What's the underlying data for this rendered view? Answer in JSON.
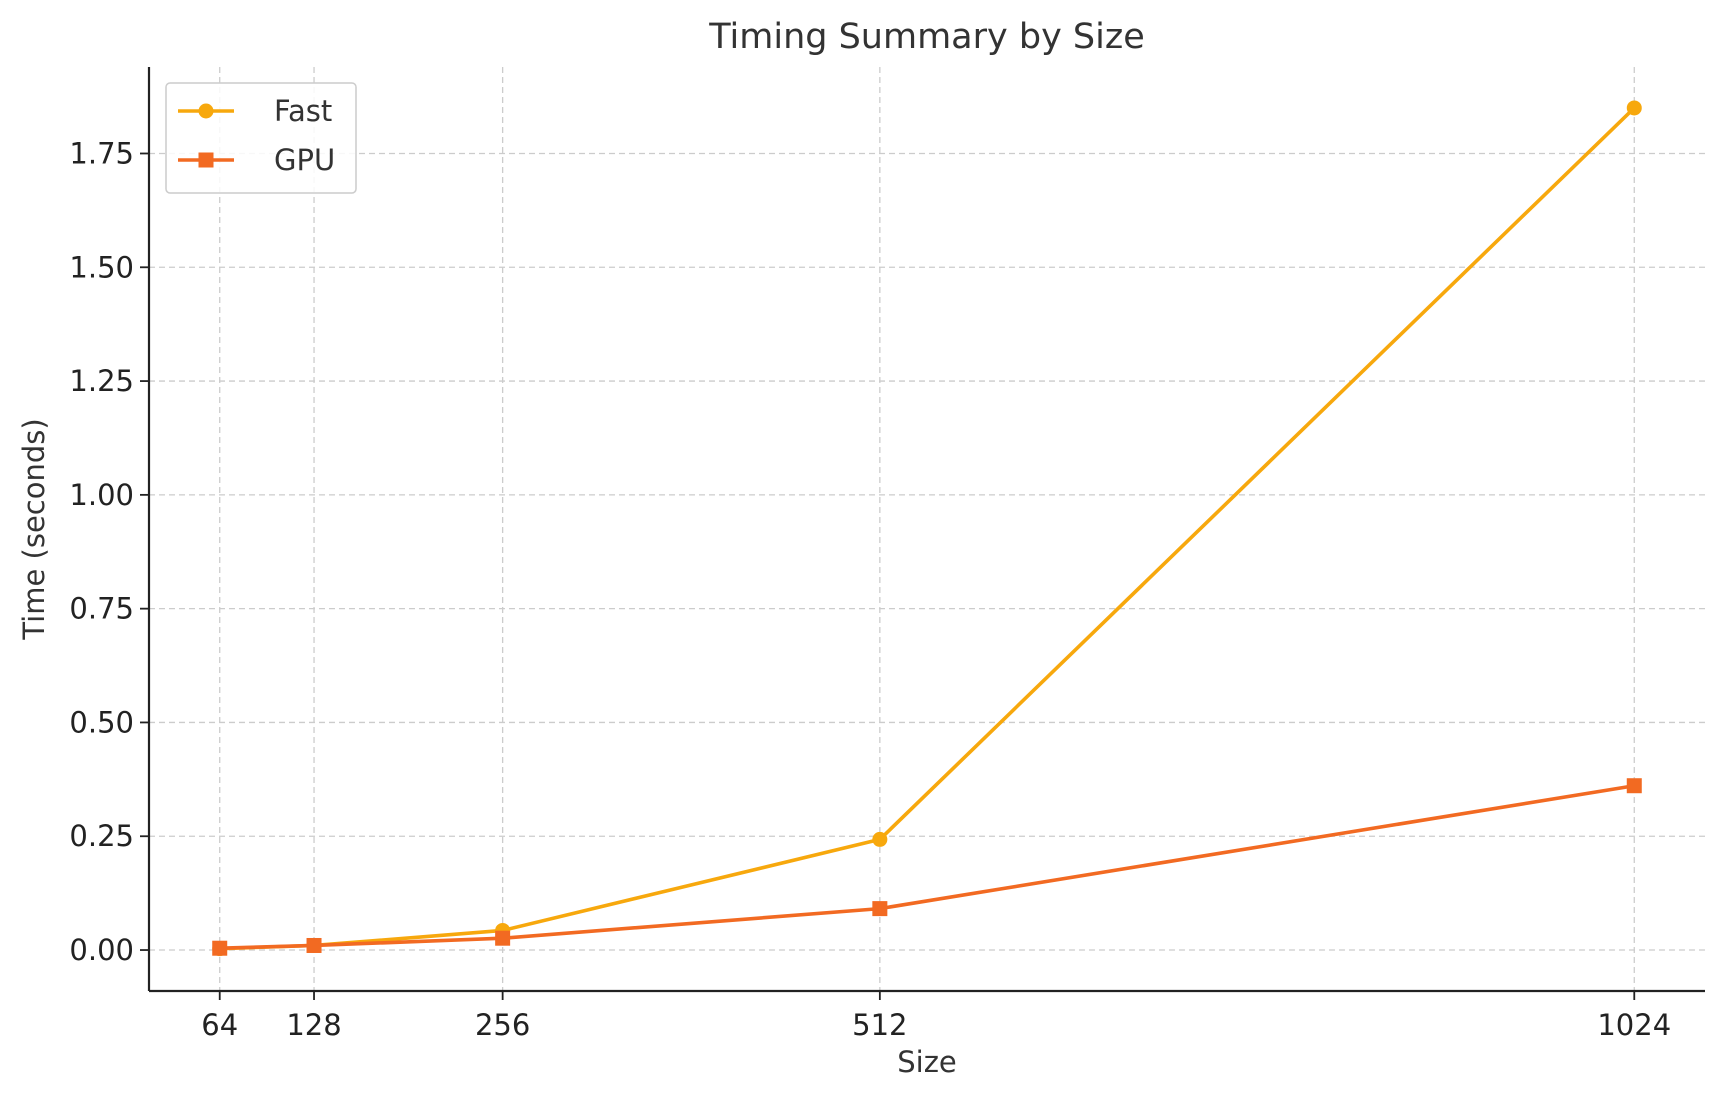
{
  "chart_data": {
    "type": "line",
    "title": "Timing Summary by Size",
    "xlabel": "Size",
    "ylabel": "Time (seconds)",
    "x": [
      64,
      128,
      256,
      512,
      1024
    ],
    "x_tick_labels": [
      "64",
      "128",
      "256",
      "512",
      "1024"
    ],
    "y_ticks": [
      0.0,
      0.25,
      0.5,
      0.75,
      1.0,
      1.25,
      1.5,
      1.75
    ],
    "y_tick_labels": [
      "0.00",
      "0.25",
      "0.50",
      "0.75",
      "1.00",
      "1.25",
      "1.50",
      "1.75"
    ],
    "xlim": [
      16,
      1072
    ],
    "ylim": [
      -0.09,
      1.94
    ],
    "grid": true,
    "legend_position": "top-left",
    "series": [
      {
        "name": "Fast",
        "values": [
          0.003,
          0.01,
          0.043,
          0.243,
          1.85
        ],
        "color": "#F7A80D",
        "marker": "circle"
      },
      {
        "name": "GPU",
        "values": [
          0.004,
          0.01,
          0.026,
          0.091,
          0.361
        ],
        "color": "#F26A22",
        "marker": "square"
      }
    ]
  }
}
